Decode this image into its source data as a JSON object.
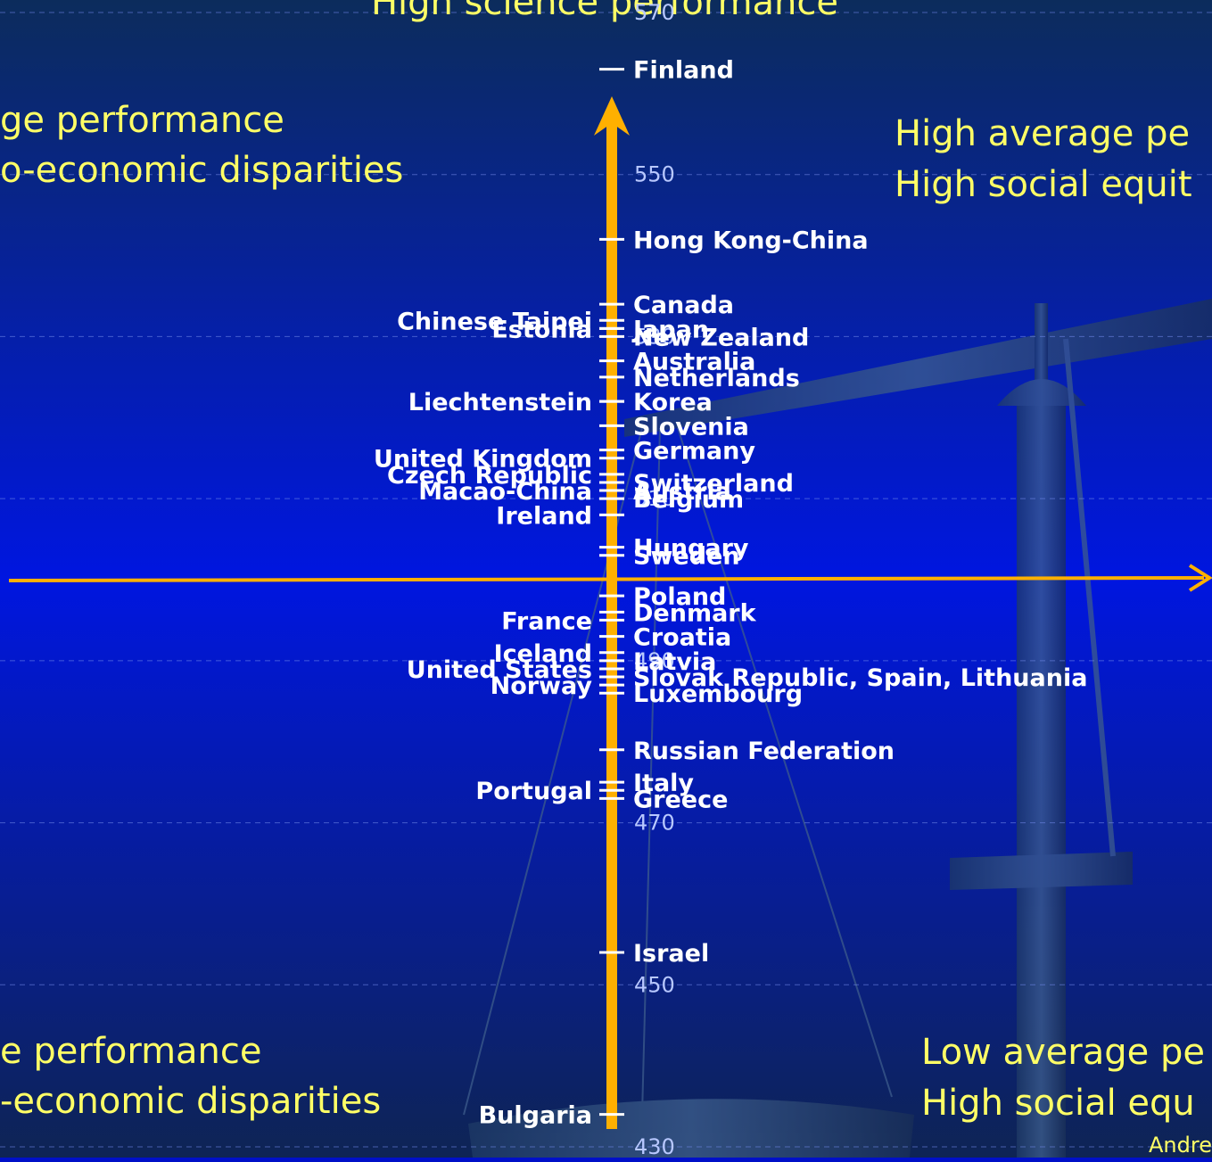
{
  "chart_data": {
    "type": "scatter",
    "title": "High science performance",
    "ylabel": "",
    "xlabel": "",
    "ylim": [
      430,
      570
    ],
    "yticks": [
      430,
      450,
      470,
      490,
      510,
      530,
      550,
      570
    ],
    "grid": true,
    "quadrants": {
      "top_left": [
        "ge performance",
        "o-economic disparities"
      ],
      "top_right": [
        "High average pe",
        "High social equit"
      ],
      "bottom_left": [
        "e performance",
        "-economic disparities"
      ],
      "bottom_right": [
        "Low average pe",
        "High social equ"
      ]
    },
    "credit": "Andre",
    "points": [
      {
        "name": "Finland",
        "y": 563,
        "side": "right"
      },
      {
        "name": "Hong Kong-China",
        "y": 542,
        "side": "right"
      },
      {
        "name": "Canada",
        "y": 534,
        "side": "right"
      },
      {
        "name": "Chinese Taipei",
        "y": 532,
        "side": "left"
      },
      {
        "name": "Estonia",
        "y": 531,
        "side": "left"
      },
      {
        "name": "Japan",
        "y": 531,
        "side": "right"
      },
      {
        "name": "New Zealand",
        "y": 530,
        "side": "right"
      },
      {
        "name": "Australia",
        "y": 527,
        "side": "right"
      },
      {
        "name": "Netherlands",
        "y": 525,
        "side": "right"
      },
      {
        "name": "Liechtenstein",
        "y": 522,
        "side": "left"
      },
      {
        "name": "Korea",
        "y": 522,
        "side": "right"
      },
      {
        "name": "Slovenia",
        "y": 519,
        "side": "right"
      },
      {
        "name": "United Kingdom",
        "y": 515,
        "side": "left"
      },
      {
        "name": "Germany",
        "y": 516,
        "side": "right"
      },
      {
        "name": "Czech Republic",
        "y": 513,
        "side": "left"
      },
      {
        "name": "Switzerland",
        "y": 512,
        "side": "right"
      },
      {
        "name": "Macao-China",
        "y": 511,
        "side": "left"
      },
      {
        "name": "Austria",
        "y": 511,
        "side": "right"
      },
      {
        "name": "Ireland",
        "y": 508,
        "side": "left"
      },
      {
        "name": "Belgium",
        "y": 510,
        "side": "right"
      },
      {
        "name": "Hungary",
        "y": 504,
        "side": "right"
      },
      {
        "name": "Sweden",
        "y": 503,
        "side": "right"
      },
      {
        "name": "Poland",
        "y": 498,
        "side": "right"
      },
      {
        "name": "Denmark",
        "y": 496,
        "side": "right"
      },
      {
        "name": "France",
        "y": 495,
        "side": "left"
      },
      {
        "name": "Croatia",
        "y": 493,
        "side": "right"
      },
      {
        "name": "Iceland",
        "y": 491,
        "side": "left"
      },
      {
        "name": "United States",
        "y": 489,
        "side": "left"
      },
      {
        "name": "Latvia",
        "y": 490,
        "side": "right"
      },
      {
        "name": "Slovak Republic, Spain, Lithuania",
        "y": 488,
        "side": "right"
      },
      {
        "name": "Norway",
        "y": 487,
        "side": "left"
      },
      {
        "name": "Luxembourg",
        "y": 486,
        "side": "right"
      },
      {
        "name": "Russian Federation",
        "y": 479,
        "side": "right"
      },
      {
        "name": "Italy",
        "y": 475,
        "side": "right"
      },
      {
        "name": "Portugal",
        "y": 474,
        "side": "left"
      },
      {
        "name": "Greece",
        "y": 473,
        "side": "right"
      },
      {
        "name": "Israel",
        "y": 454,
        "side": "right"
      },
      {
        "name": "Bulgaria",
        "y": 434,
        "side": "left"
      }
    ]
  }
}
